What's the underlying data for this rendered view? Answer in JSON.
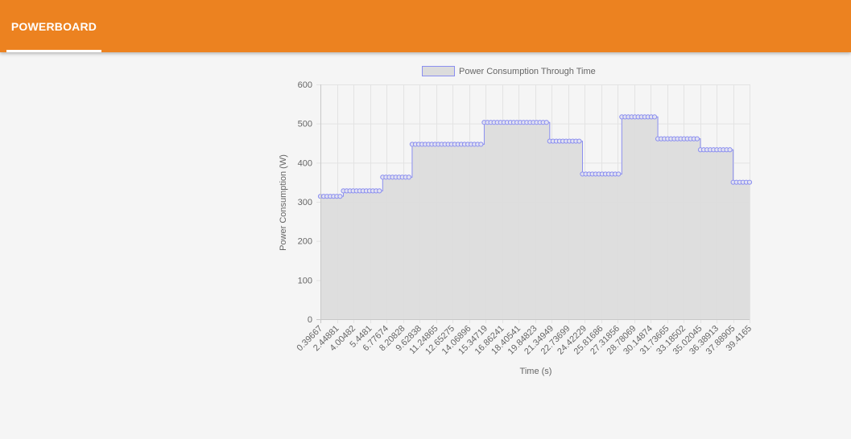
{
  "app": {
    "tab_label": "POWERBOARD"
  },
  "colors": {
    "header": "#ec8220",
    "line": "#8b8ff0",
    "fill": "#dcdcdc",
    "grid": "#e3e3e3"
  },
  "chart_data": {
    "type": "line",
    "legend": "Power Consumption Through Time",
    "legend_position": "top-center",
    "xlabel": "Time (s)",
    "ylabel": "Power Consumption (W)",
    "ylim": [
      0,
      600
    ],
    "y_ticks": [
      0,
      100,
      200,
      300,
      400,
      500,
      600
    ],
    "grid": true,
    "stepped": true,
    "x_tick_labels": [
      "0.39667",
      "2.44881",
      "4.00482",
      "5.4481",
      "6.77674",
      "8.20828",
      "9.62838",
      "11.24865",
      "12.65275",
      "14.06896",
      "15.34719",
      "16.86241",
      "18.40541",
      "19.84823",
      "21.34949",
      "22.73699",
      "24.42229",
      "25.81686",
      "27.31856",
      "28.78069",
      "30.14874",
      "31.73665",
      "33.18502",
      "35.02045",
      "36.38913",
      "37.88905",
      "39.4165"
    ],
    "segments": [
      {
        "points": 7,
        "value": 314
      },
      {
        "points": 12,
        "value": 328
      },
      {
        "points": 9,
        "value": 363
      },
      {
        "points": 22,
        "value": 447
      },
      {
        "points": 20,
        "value": 503
      },
      {
        "points": 10,
        "value": 455
      },
      {
        "points": 12,
        "value": 371
      },
      {
        "points": 11,
        "value": 517
      },
      {
        "points": 13,
        "value": 461
      },
      {
        "points": 10,
        "value": 433
      },
      {
        "points": 6,
        "value": 350
      }
    ]
  }
}
